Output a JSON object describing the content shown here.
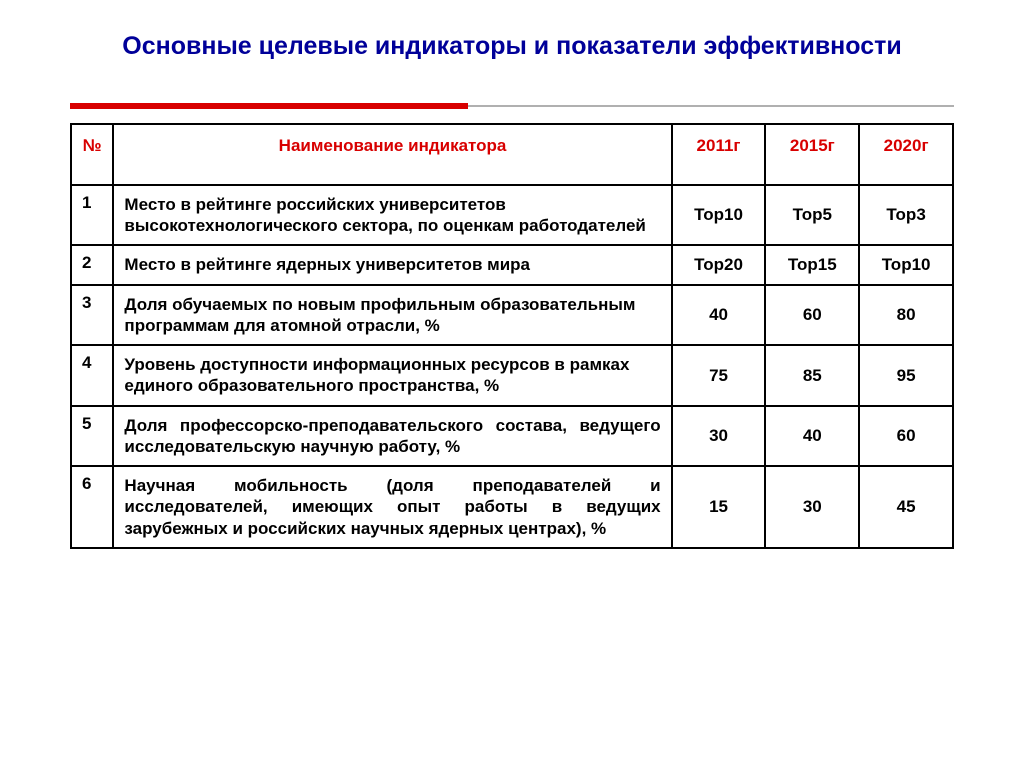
{
  "title": "Основные целевые индикаторы и показатели эффективности",
  "colors": {
    "title_color": "#000099",
    "accent_red": "#d80000",
    "border": "#000000",
    "divider_gray": "#b0b0b0",
    "background": "#ffffff"
  },
  "table": {
    "headers": {
      "num": "№",
      "indicator": "Наименование индикатора",
      "y2011": "2011г",
      "y2015": "2015г",
      "y2020": "2020г"
    },
    "rows": [
      {
        "num": "1",
        "desc": "Место в рейтинге российских университетов высокотехнологического сектора, по оценкам работодателей",
        "v2011": "Top10",
        "v2015": "Top5",
        "v2020": "Top3",
        "justify": false
      },
      {
        "num": "2",
        "desc": "Место в рейтинге ядерных университетов мира",
        "v2011": "Top20",
        "v2015": "Top15",
        "v2020": "Top10",
        "justify": false
      },
      {
        "num": "3",
        "desc": "Доля обучаемых по новым профильным образовательным программам для атомной отрасли, %",
        "v2011": "40",
        "v2015": "60",
        "v2020": "80",
        "justify": false
      },
      {
        "num": "4",
        "desc": "Уровень доступности информационных ресурсов в рамках единого образовательного пространства, %",
        "v2011": "75",
        "v2015": "85",
        "v2020": "95",
        "justify": false
      },
      {
        "num": "5",
        "desc": "Доля профессорско-преподавательского состава, ведущего исследовательскую научную работу, %",
        "v2011": "30",
        "v2015": "40",
        "v2020": "60",
        "justify": true
      },
      {
        "num": "6",
        "desc": "Научная мобильность (доля преподавателей и исследователей, имеющих опыт работы в ведущих зарубежных и российских научных ядерных центрах), %",
        "v2011": "15",
        "v2015": "30",
        "v2020": "45",
        "justify": true
      }
    ]
  }
}
